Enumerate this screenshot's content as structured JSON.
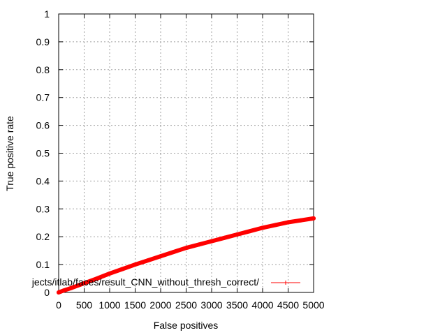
{
  "chart_data": {
    "type": "line",
    "title": "",
    "xlabel": "False positives",
    "ylabel": "True positive rate",
    "xlim": [
      0,
      5000
    ],
    "ylim": [
      0,
      1
    ],
    "x_ticks": [
      "0",
      "500",
      "1000",
      "1500",
      "2000",
      "2500",
      "3000",
      "3500",
      "4000",
      "4500",
      "5000"
    ],
    "y_ticks": [
      "0",
      "0.1",
      "0.2",
      "0.3",
      "0.4",
      "0.5",
      "0.6",
      "0.7",
      "0.8",
      "0.9",
      "1"
    ],
    "grid": true,
    "legend_position": "bottom-right",
    "series": [
      {
        "name": "jects/itlab/faces/result_CNN_without_thresh_correct/",
        "color": "#ff0000",
        "x": [
          0,
          100,
          250,
          500,
          750,
          1000,
          1250,
          1500,
          1750,
          2000,
          2250,
          2500,
          2750,
          3000,
          3250,
          3500,
          3750,
          4000,
          4250,
          4500,
          4750,
          5000
        ],
        "y": [
          0.0,
          0.007,
          0.016,
          0.033,
          0.05,
          0.068,
          0.084,
          0.1,
          0.115,
          0.13,
          0.145,
          0.16,
          0.172,
          0.184,
          0.196,
          0.208,
          0.22,
          0.232,
          0.242,
          0.252,
          0.259,
          0.266
        ]
      }
    ]
  }
}
